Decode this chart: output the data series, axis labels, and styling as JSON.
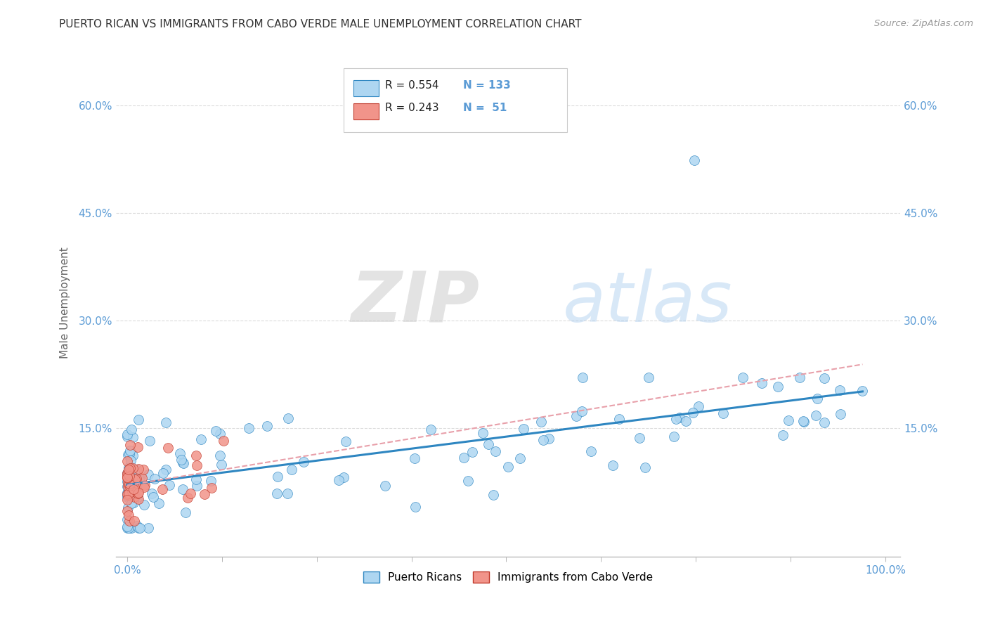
{
  "title": "PUERTO RICAN VS IMMIGRANTS FROM CABO VERDE MALE UNEMPLOYMENT CORRELATION CHART",
  "source": "Source: ZipAtlas.com",
  "ylabel": "Male Unemployment",
  "blue_color": "#AED6F1",
  "pink_color": "#F1948A",
  "line_blue": "#2E86C1",
  "line_pink": "#E74C3C",
  "axis_color": "#5B9BD5",
  "grid_color": "#CCCCCC",
  "watermark_zip": "ZIP",
  "watermark_atlas": "atlas",
  "ytick_vals": [
    0.15,
    0.3,
    0.45,
    0.6
  ],
  "ytick_labels": [
    "15.0%",
    "30.0%",
    "45.0%",
    "60.0%"
  ],
  "legend_r1": "R = 0.554",
  "legend_n1": "N = 133",
  "legend_r2": "R = 0.243",
  "legend_n2": "N =  51"
}
